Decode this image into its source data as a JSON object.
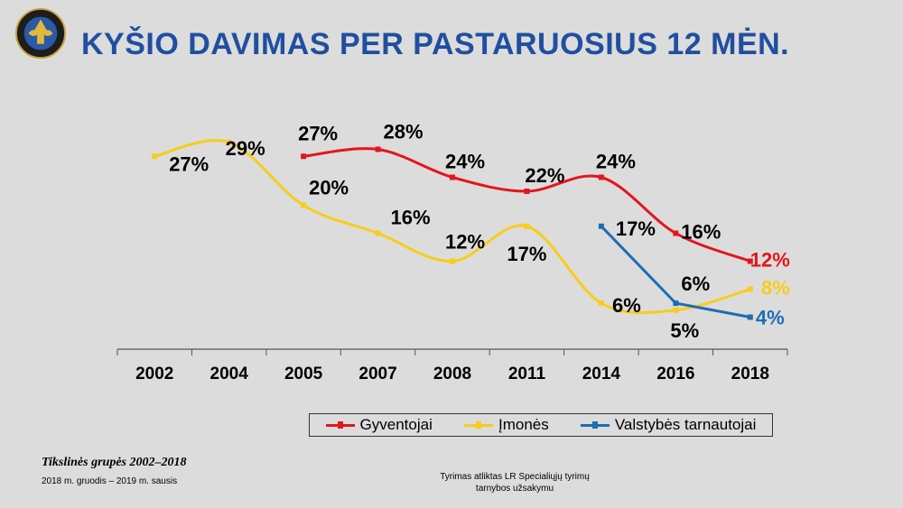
{
  "title": "KYŠIO DAVIMAS PER PASTARUOSIUS 12 MĖN.",
  "logo": {
    "icon": "agency-emblem-icon",
    "text": "SPECIALIŲJŲ TYRIMŲ TARNYBA"
  },
  "colors": {
    "title": "#1f4fa0",
    "gyventojai": "#e3161c",
    "imones": "#f7cd1a",
    "valstybes": "#1f6db3"
  },
  "chart_data": {
    "type": "line",
    "title": "",
    "categories": [
      "2002",
      "2004",
      "2005",
      "2007",
      "2008",
      "2011",
      "2014",
      "2016",
      "2018"
    ],
    "series": [
      {
        "name": "Gyventojai",
        "values": [
          null,
          null,
          27,
          28,
          24,
          22,
          24,
          16,
          12
        ],
        "labels": [
          "",
          "",
          "27%",
          "28%",
          "24%",
          "22%",
          "24%",
          "16%",
          "12%"
        ]
      },
      {
        "name": "Įmonės",
        "values": [
          27,
          29,
          20,
          16,
          12,
          17,
          6,
          5,
          8
        ],
        "labels": [
          "27%",
          "29%",
          "20%",
          "16%",
          "12%",
          "17%",
          "6%",
          "5%",
          "8%"
        ]
      },
      {
        "name": "Valstybės tarnautojai",
        "values": [
          null,
          null,
          null,
          null,
          null,
          null,
          17,
          6,
          4
        ],
        "labels": [
          "",
          "",
          "",
          "",
          "",
          "",
          "17%",
          "6%",
          "4%"
        ]
      }
    ],
    "legend": "bottom",
    "grid": false
  },
  "footer": {
    "title": "Tikslinės grupės 2002–2018",
    "dates": "2018 m. gruodis – 2019 m. sausis",
    "source": "Tyrimas atliktas LR Specialiųjų tyrimų tarnybos užsakymu"
  }
}
